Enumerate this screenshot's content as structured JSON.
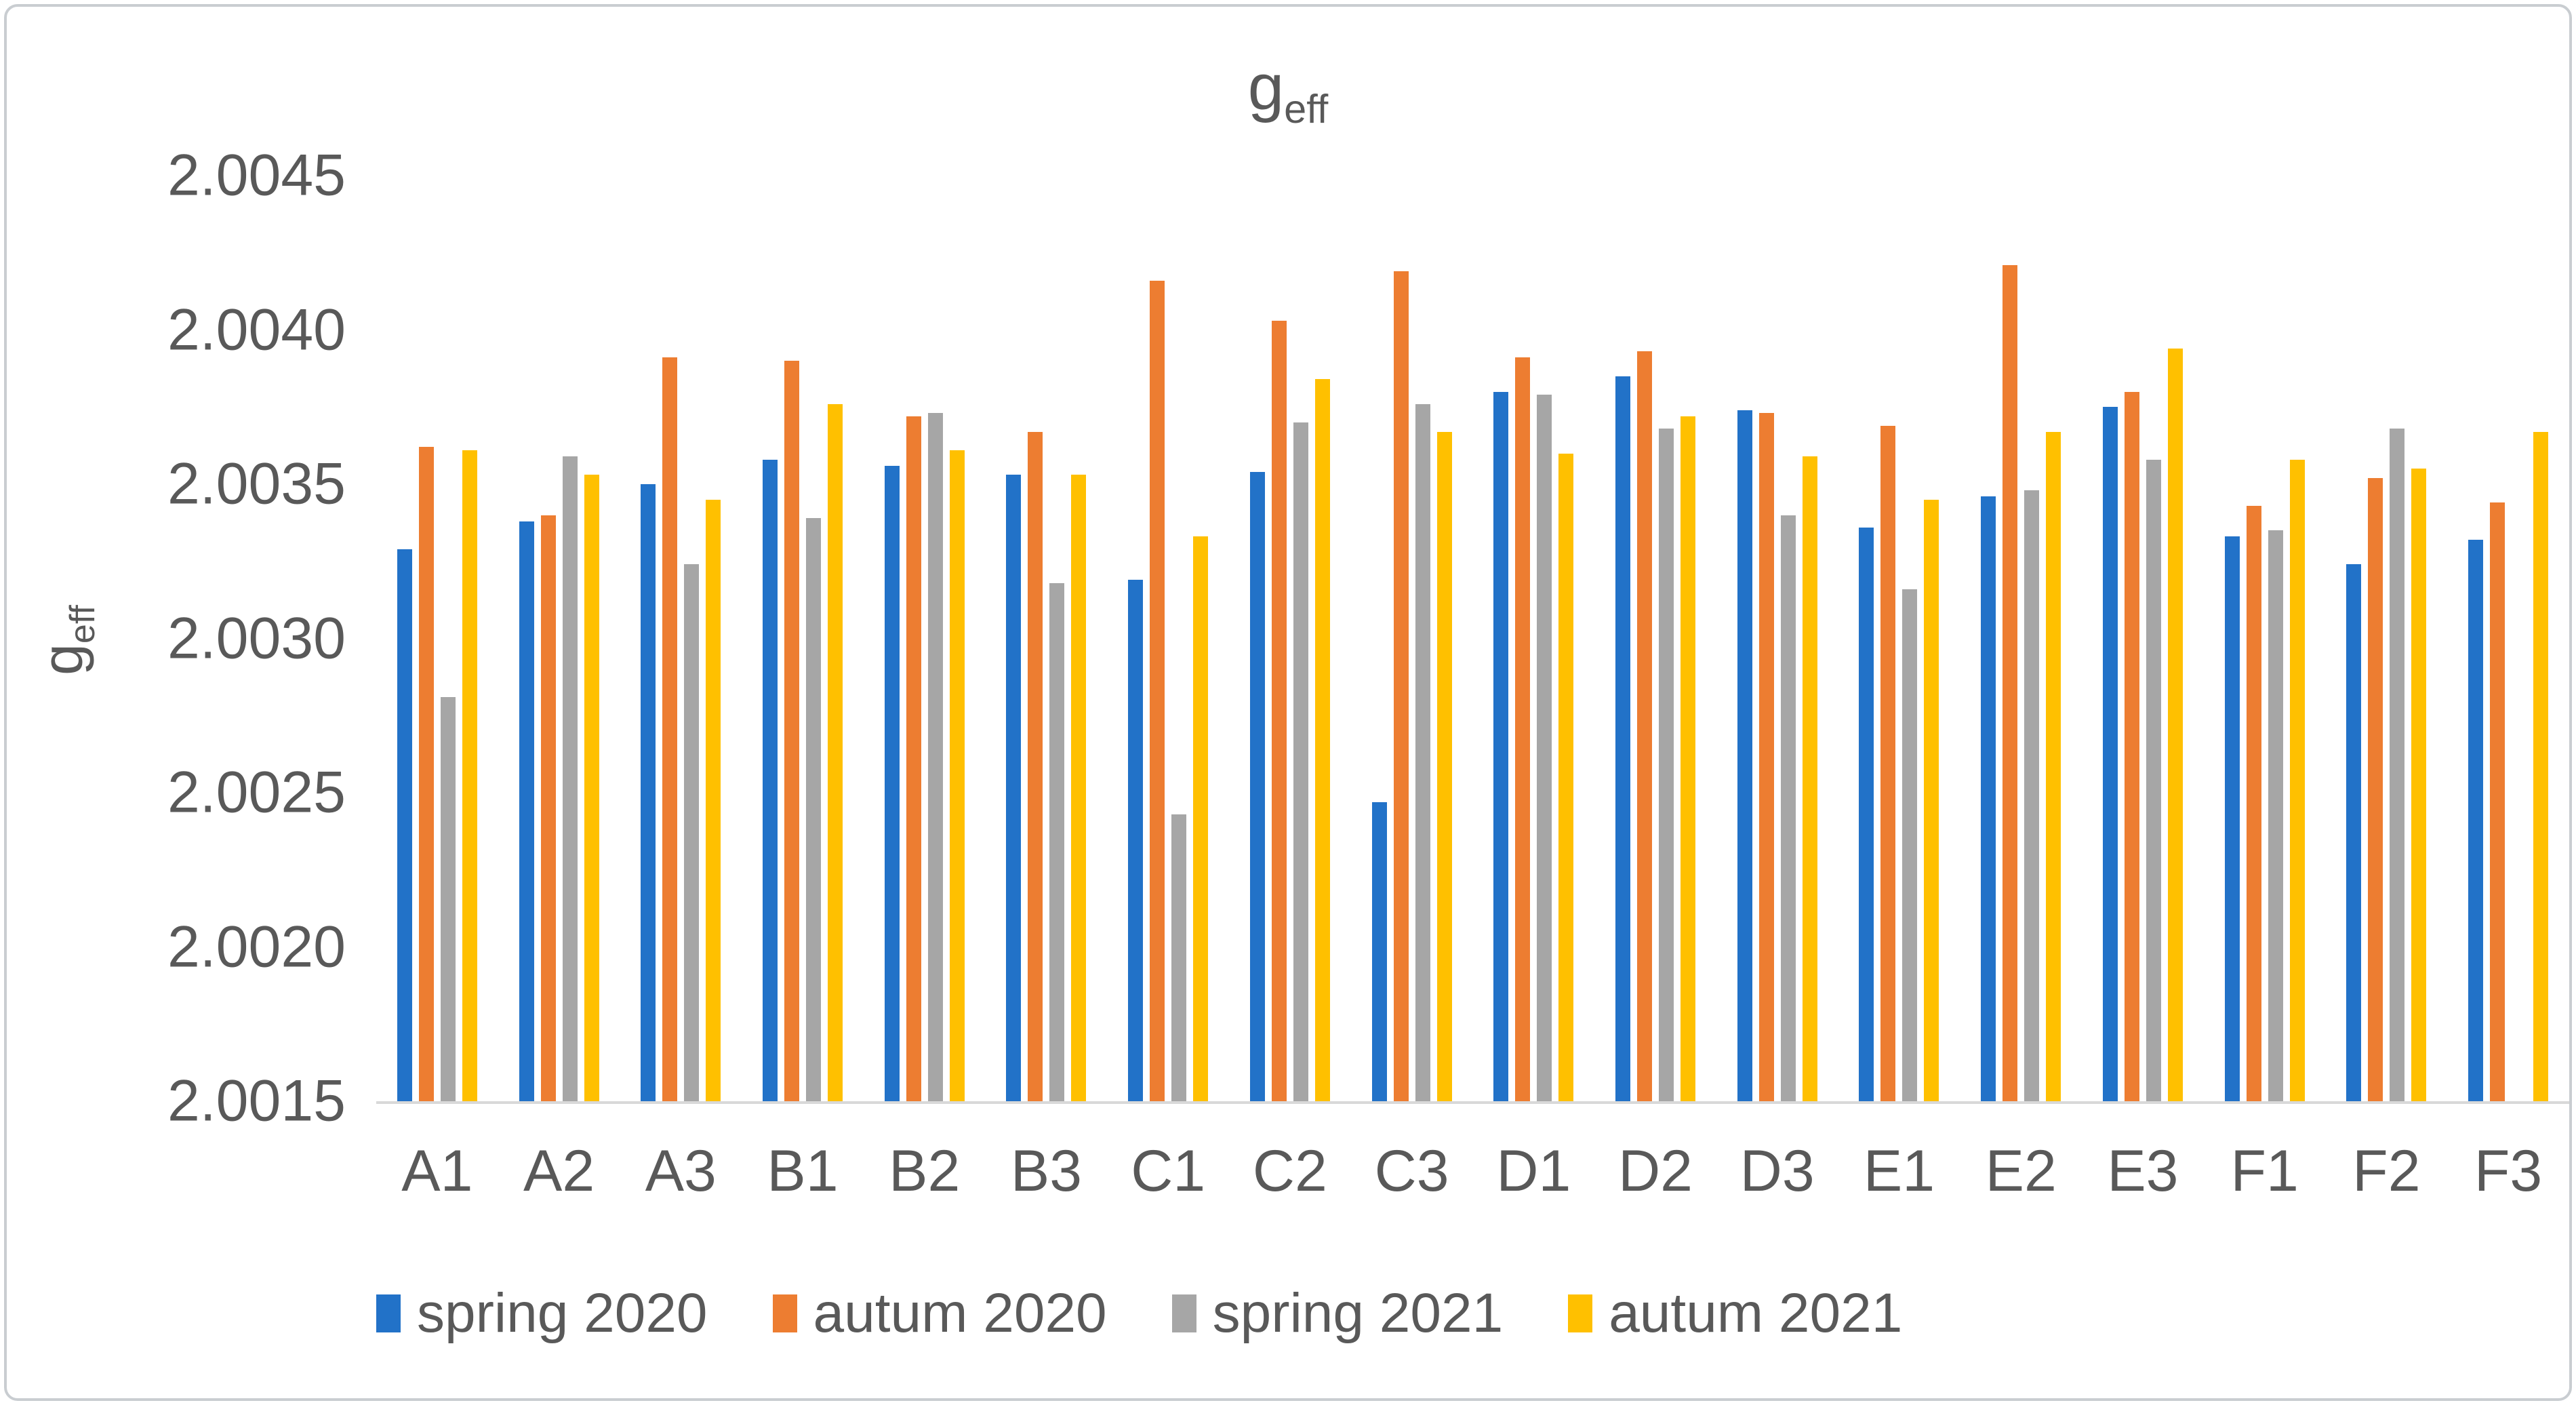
{
  "figure": {
    "background_color": "#ffffff",
    "border_color": "#c9cdd1",
    "text_color": "#595959",
    "axis_line_color": "#d9d9d9"
  },
  "title": {
    "base": "g",
    "subscript": "eff"
  },
  "y_axis_title": {
    "base": "g",
    "subscript": "eff"
  },
  "chart_data": {
    "type": "bar",
    "title": "g_eff",
    "xlabel": "",
    "ylabel": "g_eff",
    "ylim": [
      2.0015,
      2.0045
    ],
    "grid": false,
    "legend_position": "bottom",
    "ytick_labels": [
      "2.0045",
      "2.0040",
      "2.0035",
      "2.0030",
      "2.0025",
      "2.0020",
      "2.0015"
    ],
    "categories": [
      "A1",
      "A2",
      "A3",
      "B1",
      "B2",
      "B3",
      "C1",
      "C2",
      "C3",
      "D1",
      "D2",
      "D3",
      "E1",
      "E2",
      "E3",
      "F1",
      "F2",
      "F3"
    ],
    "series": [
      {
        "name": "spring 2020",
        "color": "#2272c8",
        "values": [
          2.00329,
          2.00338,
          2.0035,
          2.00358,
          2.00356,
          2.00353,
          2.00319,
          2.00354,
          2.00247,
          2.0038,
          2.00385,
          2.00374,
          2.00336,
          2.00346,
          2.00375,
          2.00333,
          2.00324,
          2.00332
        ]
      },
      {
        "name": "autum 2020",
        "color": "#ed7d31",
        "values": [
          2.00362,
          2.0034,
          2.00391,
          2.0039,
          2.00372,
          2.00367,
          2.00416,
          2.00403,
          2.00419,
          2.00391,
          2.00393,
          2.00373,
          2.00369,
          2.00421,
          2.0038,
          2.00343,
          2.00352,
          2.00344
        ]
      },
      {
        "name": "spring 2021",
        "color": "#a6a6a6",
        "values": [
          2.00281,
          2.00359,
          2.00324,
          2.00339,
          2.00373,
          2.00318,
          2.00243,
          2.0037,
          2.00376,
          2.00379,
          2.00368,
          2.0034,
          2.00316,
          2.00348,
          2.00358,
          2.00335,
          2.00368,
          null
        ]
      },
      {
        "name": "autum 2021",
        "color": "#ffc000",
        "values": [
          2.00361,
          2.00353,
          2.00345,
          2.00376,
          2.00361,
          2.00353,
          2.00333,
          2.00384,
          2.00367,
          2.0036,
          2.00372,
          2.00359,
          2.00345,
          2.00367,
          2.00394,
          2.00358,
          2.00355,
          2.00367
        ]
      }
    ]
  }
}
